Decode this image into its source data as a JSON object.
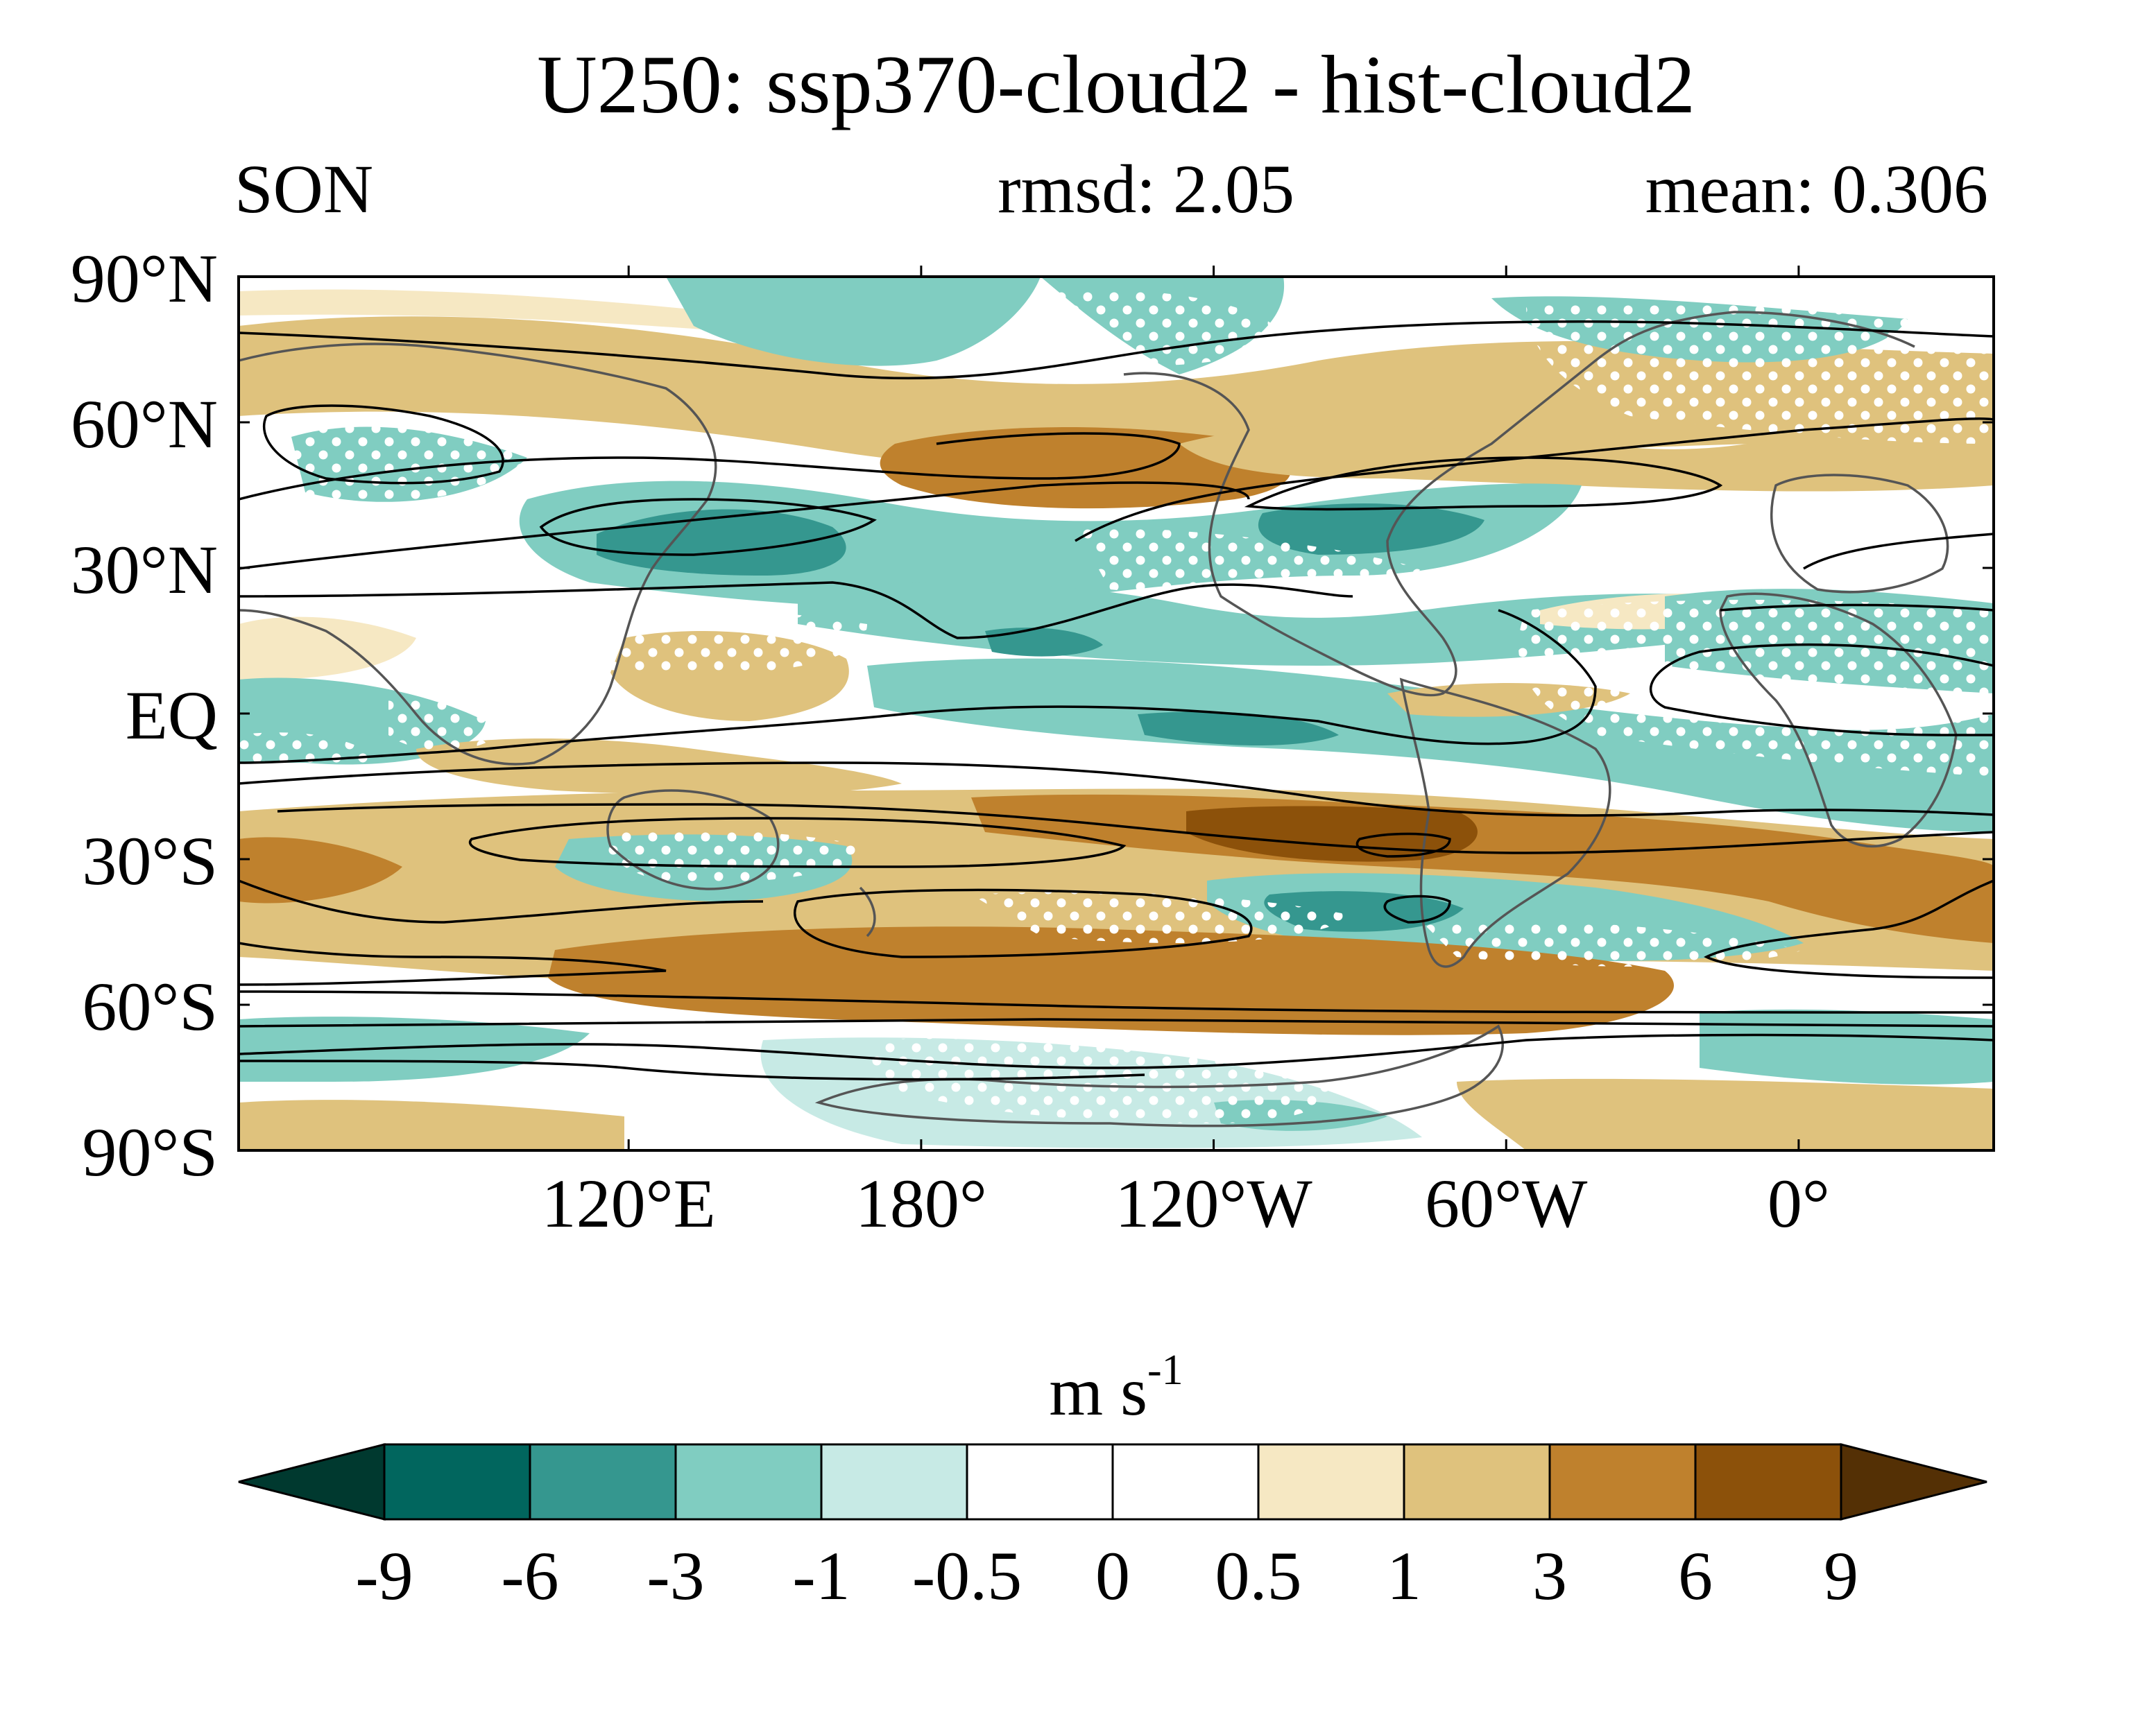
{
  "title": "U250: ssp370-cloud2 - hist-cloud2",
  "season": "SON",
  "rmsd_label": "rmsd: 2.05",
  "mean_label": "mean: 0.306",
  "map": {
    "variable": "U250",
    "lon_range": [
      40,
      400
    ],
    "lat_range": [
      -90,
      90
    ],
    "y_ticks": [
      {
        "lat": 90,
        "label": "90°N"
      },
      {
        "lat": 60,
        "label": "60°N"
      },
      {
        "lat": 30,
        "label": "30°N"
      },
      {
        "lat": 0,
        "label": "EQ"
      },
      {
        "lat": -30,
        "label": "30°S"
      },
      {
        "lat": -60,
        "label": "60°S"
      },
      {
        "lat": -90,
        "label": "90°S"
      }
    ],
    "x_ticks": [
      {
        "lon": 120,
        "label": "120°E"
      },
      {
        "lon": 180,
        "label": "180°"
      },
      {
        "lon": 240,
        "label": "120°W"
      },
      {
        "lon": 300,
        "label": "60°W"
      },
      {
        "lon": 360,
        "label": "0°"
      }
    ],
    "stippling": "white dots mark significant differences",
    "contours": "black lines show climatological zonal wind"
  },
  "colorbar": {
    "unit": "m s",
    "unit_superscript": "-1",
    "tick_labels": [
      "-9",
      "-6",
      "-3",
      "-1",
      "-0.5",
      "0",
      "0.5",
      "1",
      "3",
      "6",
      "9"
    ],
    "colors": [
      "#00392f",
      "#01665e",
      "#35978f",
      "#80cdc1",
      "#c7eae5",
      "#ffffff",
      "#ffffff",
      "#f6e8c3",
      "#dfc27d",
      "#bf812d",
      "#8c510a",
      "#543005"
    ]
  }
}
